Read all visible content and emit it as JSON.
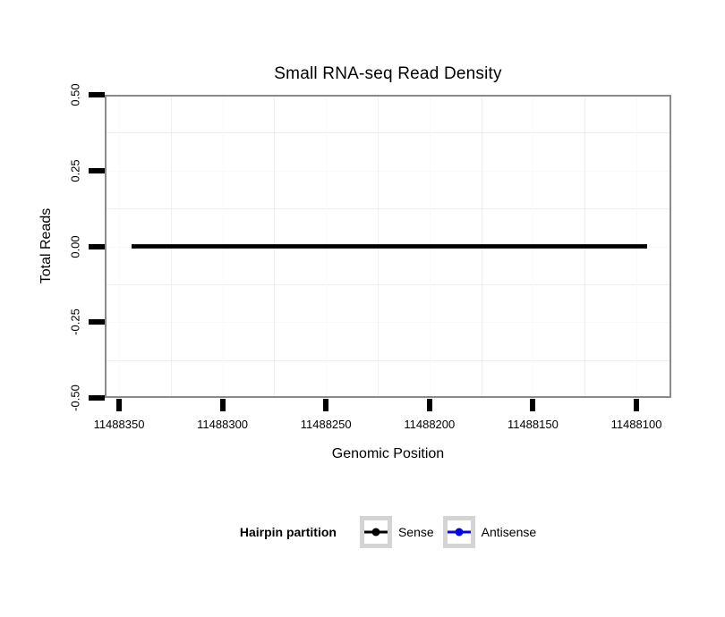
{
  "chart_data": {
    "type": "line",
    "title": "Small RNA-seq Read Density",
    "xlabel": "Genomic Position",
    "ylabel": "Total Reads",
    "x_axis": {
      "reversed": true,
      "tick_values": [
        11488350,
        11488300,
        11488250,
        11488200,
        11488150,
        11488100
      ],
      "tick_labels": [
        "11488350",
        "11488300",
        "11488250",
        "11488200",
        "11488150",
        "11488100"
      ]
    },
    "y_axis": {
      "range": [
        -0.5,
        0.5
      ],
      "tick_values": [
        0.5,
        0.25,
        0,
        -0.25,
        -0.5
      ],
      "tick_labels": [
        "0.50",
        "0.25",
        "0.00",
        "-0.25",
        "-0.50"
      ]
    },
    "grid": {
      "minor_visible": true,
      "major_color": "#fafafa",
      "minor_color": "#efefef"
    },
    "legend": {
      "title": "Hairpin partition",
      "position": "bottom"
    },
    "series": [
      {
        "name": "Sense",
        "color": "#000000",
        "y_constant": 0,
        "x_start": 11488344,
        "x_end": 11488095
      },
      {
        "name": "Antisense",
        "color": "#0000ee",
        "y_constant": 0,
        "x_start": 11488344,
        "x_end": 11488095
      }
    ]
  },
  "style_colors": {
    "panel_border": "#8a8a8a",
    "tick_color": "#000000",
    "legend_key_border": "#d4d4d4",
    "background": "#ffffff"
  }
}
